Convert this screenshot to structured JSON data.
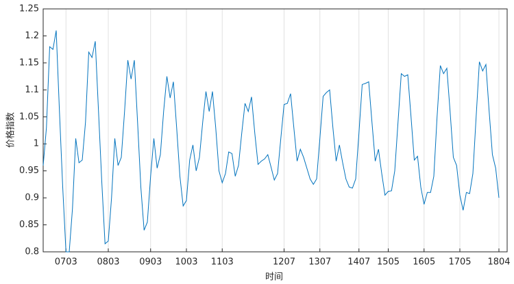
{
  "chart_data": {
    "type": "line",
    "xlabel": "时间",
    "ylabel": "价格指数",
    "categories": [
      null,
      null,
      null,
      null,
      null,
      null,
      null,
      "0703",
      null,
      null,
      null,
      null,
      null,
      null,
      null,
      null,
      null,
      null,
      null,
      null,
      "0803",
      null,
      null,
      null,
      null,
      null,
      null,
      null,
      null,
      null,
      null,
      null,
      null,
      "0903",
      null,
      null,
      null,
      null,
      null,
      null,
      null,
      null,
      null,
      null,
      "1003",
      null,
      null,
      null,
      null,
      null,
      null,
      null,
      null,
      null,
      null,
      "1103",
      null,
      null,
      null,
      null,
      null,
      null,
      null,
      null,
      null,
      null,
      null,
      null,
      null,
      null,
      null,
      null,
      null,
      null,
      "1207",
      null,
      null,
      null,
      null,
      null,
      null,
      null,
      null,
      null,
      null,
      "1307",
      null,
      null,
      null,
      null,
      null,
      null,
      null,
      null,
      null,
      null,
      null,
      "1407",
      null,
      null,
      null,
      null,
      null,
      null,
      null,
      null,
      "1505",
      null,
      null,
      null,
      null,
      null,
      null,
      null,
      null,
      null,
      null,
      "1605",
      null,
      null,
      null,
      null,
      null,
      null,
      null,
      null,
      null,
      null,
      "1705",
      null,
      null,
      null,
      null,
      null,
      null,
      null,
      null,
      null,
      null,
      null,
      "1804"
    ],
    "series": [
      {
        "name": "价格指数",
        "color": "#0072bd",
        "values": [
          0.96,
          1.03,
          1.18,
          1.175,
          1.21,
          1.06,
          0.92,
          0.8,
          0.8,
          0.88,
          1.01,
          0.965,
          0.97,
          1.04,
          1.17,
          1.16,
          1.19,
          1.06,
          0.93,
          0.815,
          0.82,
          0.9,
          1.01,
          0.96,
          0.975,
          1.06,
          1.155,
          1.12,
          1.155,
          1.04,
          0.92,
          0.84,
          0.855,
          0.94,
          1.01,
          0.955,
          0.98,
          1.06,
          1.125,
          1.085,
          1.115,
          1.03,
          0.94,
          0.885,
          0.895,
          0.97,
          0.998,
          0.95,
          0.975,
          1.04,
          1.097,
          1.06,
          1.097,
          1.03,
          0.95,
          0.928,
          0.945,
          0.985,
          0.982,
          0.94,
          0.96,
          1.02,
          1.075,
          1.06,
          1.087,
          1.02,
          0.962,
          0.968,
          0.972,
          0.98,
          0.957,
          0.933,
          0.945,
          1.01,
          1.073,
          1.075,
          1.093,
          1.03,
          0.968,
          0.99,
          0.975,
          0.955,
          0.935,
          0.925,
          0.935,
          1.01,
          1.088,
          1.095,
          1.1,
          1.03,
          0.968,
          0.998,
          0.965,
          0.935,
          0.92,
          0.918,
          0.935,
          1.02,
          1.11,
          1.112,
          1.115,
          1.04,
          0.968,
          0.99,
          0.945,
          0.905,
          0.912,
          0.913,
          0.95,
          1.04,
          1.13,
          1.125,
          1.128,
          1.05,
          0.97,
          0.977,
          0.92,
          0.888,
          0.91,
          0.91,
          0.94,
          1.05,
          1.145,
          1.13,
          1.14,
          1.06,
          0.975,
          0.96,
          0.905,
          0.877,
          0.91,
          0.908,
          0.945,
          1.05,
          1.152,
          1.135,
          1.147,
          1.06,
          0.98,
          0.955,
          0.9
        ]
      }
    ],
    "ylim": [
      0.8,
      1.25
    ],
    "yticks": [
      0.8,
      0.85,
      0.9,
      0.95,
      1,
      1.05,
      1.1,
      1.15,
      1.2,
      1.25
    ],
    "grid": true
  }
}
